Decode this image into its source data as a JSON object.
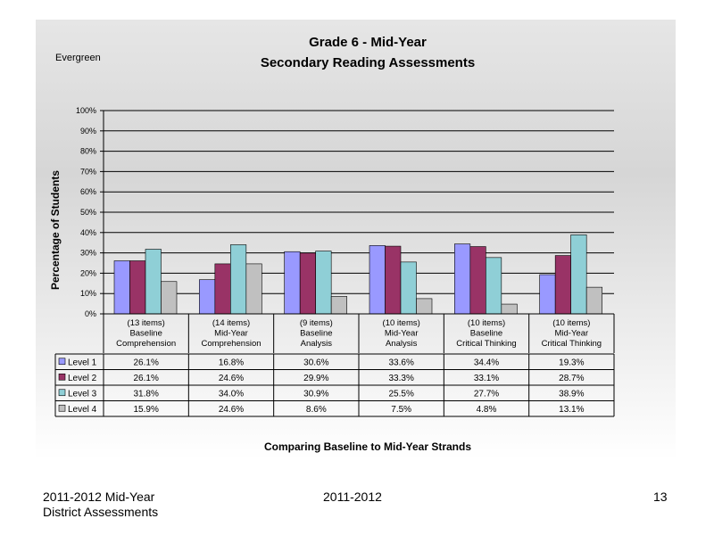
{
  "footer": {
    "left_line1": "2011-2012  Mid-Year",
    "left_line2": "District Assessments",
    "center": "2011-2012",
    "page_number": "13"
  },
  "chart_data": {
    "type": "bar",
    "corner_label": "Evergreen",
    "title_line1": "Grade 6 - Mid-Year",
    "title_line2": "Secondary Reading Assessments",
    "ylabel": "Percentage of Students",
    "xlabel": "Comparing Baseline to Mid-Year Strands",
    "ylim": [
      0,
      100
    ],
    "yticks": [
      "0%",
      "10%",
      "20%",
      "30%",
      "40%",
      "50%",
      "60%",
      "70%",
      "80%",
      "90%",
      "100%"
    ],
    "grid": true,
    "legend": "data-table",
    "categories": [
      [
        "(13 items)",
        "Baseline",
        "Comprehension"
      ],
      [
        "(14 items)",
        "Mid-Year",
        "Comprehension"
      ],
      [
        "(9 items)",
        "Baseline",
        "Analysis"
      ],
      [
        "(10 items)",
        "Mid-Year",
        "Analysis"
      ],
      [
        "(10 items)",
        "Baseline",
        "Critical Thinking"
      ],
      [
        "(10 items)",
        "Mid-Year",
        "Critical Thinking"
      ]
    ],
    "series": [
      {
        "name": "Level 1",
        "color": "#9999ff",
        "values": [
          26.1,
          16.8,
          30.6,
          33.6,
          34.4,
          19.3
        ],
        "labels": [
          "26.1%",
          "16.8%",
          "30.6%",
          "33.6%",
          "34.4%",
          "19.3%"
        ]
      },
      {
        "name": "Level 2",
        "color": "#993366",
        "values": [
          26.1,
          24.6,
          29.9,
          33.3,
          33.1,
          28.7
        ],
        "labels": [
          "26.1%",
          "24.6%",
          "29.9%",
          "33.3%",
          "33.1%",
          "28.7%"
        ]
      },
      {
        "name": "Level 3",
        "color": "#8fcfd6",
        "values": [
          31.8,
          34.0,
          30.9,
          25.5,
          27.7,
          38.9
        ],
        "labels": [
          "31.8%",
          "34.0%",
          "30.9%",
          "25.5%",
          "27.7%",
          "38.9%"
        ]
      },
      {
        "name": "Level 4",
        "color": "#c0c0c0",
        "values": [
          15.9,
          24.6,
          8.6,
          7.5,
          4.8,
          13.1
        ],
        "labels": [
          "15.9%",
          "24.6%",
          "8.6%",
          "7.5%",
          "4.8%",
          "13.1%"
        ]
      }
    ]
  }
}
